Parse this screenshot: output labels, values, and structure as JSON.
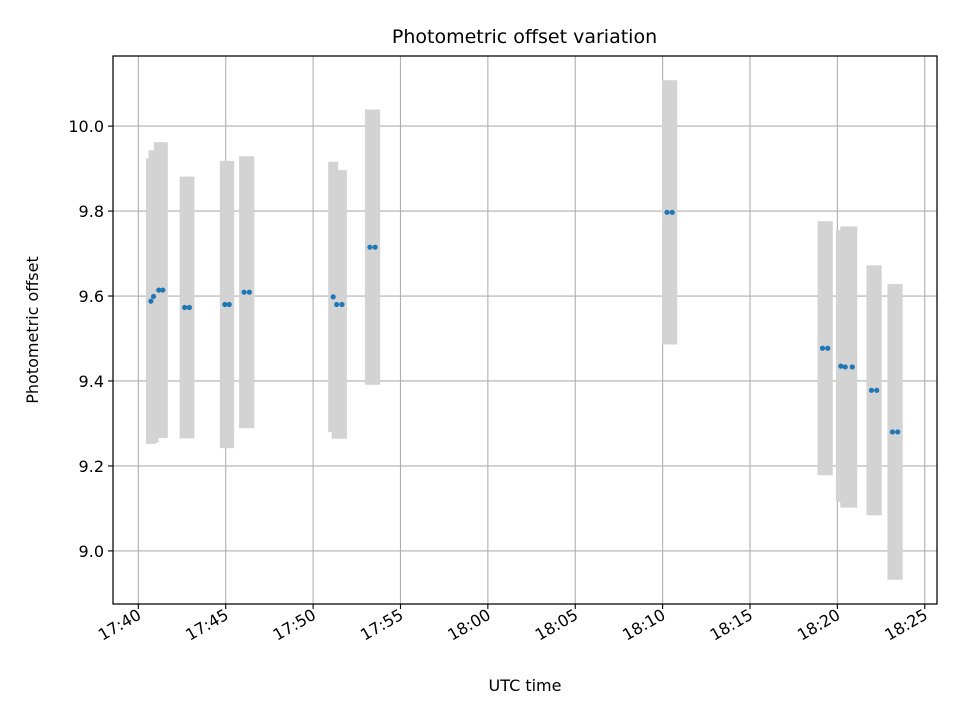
{
  "chart_data": {
    "type": "scatter",
    "title": "Photometric offset variation",
    "xlabel": "UTC time",
    "ylabel": "Photometric offset",
    "x_unit": "minutes after 17:00 UTC",
    "xlim": [
      38.55,
      85.7
    ],
    "ylim": [
      8.875,
      10.165
    ],
    "grid": true,
    "legend": "none",
    "xticks": [
      {
        "value": 40,
        "label": "17:40"
      },
      {
        "value": 45,
        "label": "17:45"
      },
      {
        "value": 50,
        "label": "17:50"
      },
      {
        "value": 55,
        "label": "17:55"
      },
      {
        "value": 60,
        "label": "18:00"
      },
      {
        "value": 65,
        "label": "18:05"
      },
      {
        "value": 70,
        "label": "18:10"
      },
      {
        "value": 75,
        "label": "18:15"
      },
      {
        "value": 80,
        "label": "18:20"
      },
      {
        "value": 85,
        "label": "18:25"
      }
    ],
    "yticks": [
      {
        "value": 9.0,
        "label": "9.0"
      },
      {
        "value": 9.2,
        "label": "9.2"
      },
      {
        "value": 9.4,
        "label": "9.4"
      },
      {
        "value": 9.6,
        "label": "9.6"
      },
      {
        "value": 9.8,
        "label": "9.8"
      },
      {
        "value": 10.0,
        "label": "10.0"
      }
    ],
    "colors": {
      "points": "#1f77b4",
      "errorbars": "#d3d3d3",
      "grid": "#b0b0b0"
    },
    "points": [
      {
        "x": 40.72,
        "y": 9.588,
        "err": 0.336
      },
      {
        "x": 40.87,
        "y": 9.599,
        "err": 0.344
      },
      {
        "x": 41.17,
        "y": 9.614,
        "err": 0.348
      },
      {
        "x": 41.4,
        "y": 9.614,
        "err": 0.348
      },
      {
        "x": 42.65,
        "y": 9.573,
        "err": 0.308
      },
      {
        "x": 42.92,
        "y": 9.573,
        "err": 0.308
      },
      {
        "x": 44.95,
        "y": 9.58,
        "err": 0.338
      },
      {
        "x": 45.2,
        "y": 9.58,
        "err": 0.338
      },
      {
        "x": 46.05,
        "y": 9.609,
        "err": 0.32
      },
      {
        "x": 46.35,
        "y": 9.609,
        "err": 0.32
      },
      {
        "x": 51.15,
        "y": 9.598,
        "err": 0.318
      },
      {
        "x": 51.35,
        "y": 9.58,
        "err": 0.316
      },
      {
        "x": 51.65,
        "y": 9.58,
        "err": 0.316
      },
      {
        "x": 53.25,
        "y": 9.715,
        "err": 0.324
      },
      {
        "x": 53.55,
        "y": 9.715,
        "err": 0.324
      },
      {
        "x": 70.25,
        "y": 9.797,
        "err": 0.311
      },
      {
        "x": 70.55,
        "y": 9.797,
        "err": 0.311
      },
      {
        "x": 79.15,
        "y": 9.477,
        "err": 0.299
      },
      {
        "x": 79.45,
        "y": 9.477,
        "err": 0.299
      },
      {
        "x": 80.2,
        "y": 9.435,
        "err": 0.32
      },
      {
        "x": 80.45,
        "y": 9.433,
        "err": 0.331
      },
      {
        "x": 80.85,
        "y": 9.433,
        "err": 0.331
      },
      {
        "x": 81.95,
        "y": 9.378,
        "err": 0.294
      },
      {
        "x": 82.25,
        "y": 9.378,
        "err": 0.294
      },
      {
        "x": 83.15,
        "y": 9.28,
        "err": 0.348
      },
      {
        "x": 83.45,
        "y": 9.28,
        "err": 0.348
      }
    ]
  }
}
